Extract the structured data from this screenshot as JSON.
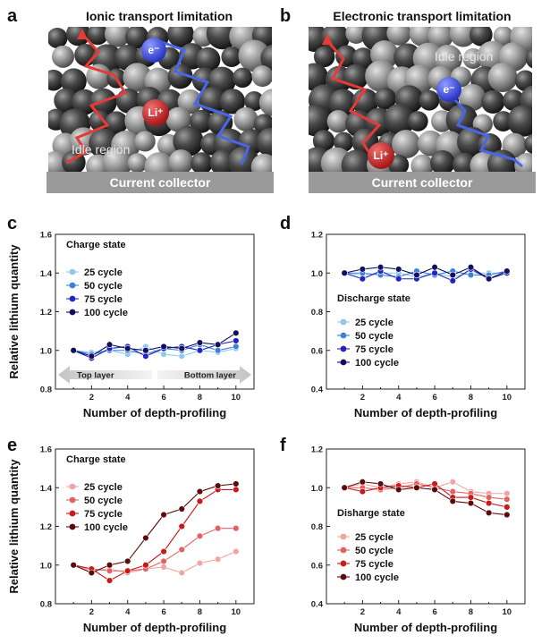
{
  "figure": {
    "panels": {
      "a": "a",
      "b": "b",
      "c": "c",
      "d": "d",
      "e": "e",
      "f": "f"
    },
    "schematic_a": {
      "title": "Ionic transport limitation",
      "collector": "Current collector",
      "idle": "Idle region",
      "electron": "e⁻",
      "lithium": "Li⁺"
    },
    "schematic_b": {
      "title": "Electronic transport limitation",
      "collector": "Current collector",
      "idle": "Idle region",
      "electron": "e⁻",
      "lithium": "Li⁺"
    },
    "colors": {
      "path_red": "#e63b36",
      "path_blue": "#4a66e8",
      "collector": "#9a9a9a",
      "electron_ball": "#4455dd",
      "lithium_ball": "#cc2a2a"
    }
  },
  "chart_data": [
    {
      "id": "c",
      "type": "line",
      "state_label": "Charge state",
      "xlabel": "Number of depth-profiling",
      "ylabel": "Relative lithium quantity",
      "xlim": [
        0,
        11
      ],
      "ylim": [
        0.8,
        1.6
      ],
      "xticks": [
        "2",
        "4",
        "6",
        "8",
        "10"
      ],
      "yticks": [
        "0.8",
        "1.0",
        "1.2",
        "1.4",
        "1.6"
      ],
      "layer_labels": {
        "left": "Top layer",
        "right": "Bottom layer"
      },
      "x": [
        1,
        2,
        3,
        4,
        5,
        6,
        7,
        8,
        9,
        10
      ],
      "series": [
        {
          "name": "25 cycle",
          "color": "#8ec8ef",
          "values": [
            1.0,
            0.99,
            1.0,
            0.98,
            1.02,
            0.98,
            0.97,
            1.0,
            0.99,
            1.01
          ]
        },
        {
          "name": "50 cycle",
          "color": "#3d80d8",
          "values": [
            1.0,
            0.98,
            1.0,
            1.0,
            0.98,
            1.01,
            1.0,
            1.03,
            1.0,
            1.02
          ]
        },
        {
          "name": "75 cycle",
          "color": "#2224c0",
          "values": [
            1.0,
            0.96,
            1.01,
            1.02,
            0.97,
            1.01,
            1.02,
            1.0,
            1.03,
            1.05
          ]
        },
        {
          "name": "100 cycle",
          "color": "#101060",
          "values": [
            1.0,
            0.97,
            1.03,
            1.01,
            1.0,
            1.02,
            1.01,
            1.04,
            1.03,
            1.09
          ]
        }
      ]
    },
    {
      "id": "d",
      "type": "line",
      "state_label": "Discharge state",
      "xlabel": "Number of depth-profiling",
      "ylabel": "",
      "xlim": [
        0,
        11
      ],
      "ylim": [
        0.4,
        1.2
      ],
      "xticks": [
        "2",
        "4",
        "6",
        "8",
        "10"
      ],
      "yticks": [
        "0.4",
        "0.6",
        "0.8",
        "1.0",
        "1.2"
      ],
      "x": [
        1,
        2,
        3,
        4,
        5,
        6,
        7,
        8,
        9,
        10
      ],
      "series": [
        {
          "name": "25 cycle",
          "color": "#8ec8ef",
          "values": [
            1.0,
            0.99,
            1.0,
            1.0,
            0.98,
            1.0,
            0.98,
            1.0,
            1.0,
            1.0
          ]
        },
        {
          "name": "50 cycle",
          "color": "#3d80d8",
          "values": [
            1.0,
            1.0,
            0.99,
            0.98,
            1.01,
            0.99,
            1.01,
            0.99,
            0.99,
            1.01
          ]
        },
        {
          "name": "75 cycle",
          "color": "#2224c0",
          "values": [
            1.0,
            0.97,
            1.01,
            0.97,
            0.97,
            1.0,
            0.96,
            1.02,
            0.97,
            1.0
          ]
        },
        {
          "name": "100 cycle",
          "color": "#101060",
          "values": [
            1.0,
            1.02,
            1.03,
            1.02,
            0.99,
            1.03,
            0.99,
            1.03,
            0.97,
            1.01
          ]
        }
      ]
    },
    {
      "id": "e",
      "type": "line",
      "state_label": "Charge state",
      "xlabel": "Number of depth-profiling",
      "ylabel": "Relative lithium quantity",
      "xlim": [
        0,
        11
      ],
      "ylim": [
        0.8,
        1.6
      ],
      "xticks": [
        "2",
        "4",
        "6",
        "8",
        "10"
      ],
      "yticks": [
        "0.8",
        "1.0",
        "1.2",
        "1.4",
        "1.6"
      ],
      "x": [
        1,
        2,
        3,
        4,
        5,
        6,
        7,
        8,
        9,
        10
      ],
      "series": [
        {
          "name": "25 cycle",
          "color": "#f2a4a4",
          "values": [
            1.0,
            0.97,
            0.98,
            0.96,
            0.98,
            0.99,
            0.96,
            1.01,
            1.03,
            1.07
          ]
        },
        {
          "name": "50 cycle",
          "color": "#e06262",
          "values": [
            1.0,
            0.98,
            0.97,
            0.97,
            0.98,
            1.02,
            1.08,
            1.15,
            1.19,
            1.19
          ]
        },
        {
          "name": "75 cycle",
          "color": "#c8191b",
          "values": [
            1.0,
            0.98,
            0.92,
            0.97,
            1.0,
            1.07,
            1.2,
            1.33,
            1.39,
            1.39
          ]
        },
        {
          "name": "100 cycle",
          "color": "#5a0b0b",
          "values": [
            1.0,
            0.96,
            1.0,
            1.02,
            1.14,
            1.26,
            1.29,
            1.38,
            1.41,
            1.42
          ]
        }
      ]
    },
    {
      "id": "f",
      "type": "line",
      "state_label": "Disharge state",
      "xlabel": "Number of depth-profiling",
      "ylabel": "",
      "xlim": [
        0,
        11
      ],
      "ylim": [
        0.4,
        1.2
      ],
      "xticks": [
        "2",
        "4",
        "6",
        "8",
        "10"
      ],
      "yticks": [
        "0.4",
        "0.6",
        "0.8",
        "1.0",
        "1.2"
      ],
      "x": [
        1,
        2,
        3,
        4,
        5,
        6,
        7,
        8,
        9,
        10
      ],
      "series": [
        {
          "name": "25 cycle",
          "color": "#f2a4a4",
          "values": [
            1.0,
            1.02,
            1.0,
            1.02,
            1.03,
            1.0,
            1.03,
            0.98,
            0.97,
            0.97
          ]
        },
        {
          "name": "50 cycle",
          "color": "#e06262",
          "values": [
            1.0,
            1.0,
            0.99,
            1.0,
            1.02,
            1.0,
            0.98,
            0.97,
            0.95,
            0.94
          ]
        },
        {
          "name": "75 cycle",
          "color": "#c8191b",
          "values": [
            1.0,
            0.98,
            1.0,
            1.01,
            1.0,
            1.02,
            0.95,
            0.95,
            0.92,
            0.9
          ]
        },
        {
          "name": "100 cycle",
          "color": "#5a0b0b",
          "values": [
            1.0,
            1.03,
            1.02,
            0.99,
            1.0,
            0.99,
            0.93,
            0.92,
            0.87,
            0.86
          ]
        }
      ]
    }
  ]
}
